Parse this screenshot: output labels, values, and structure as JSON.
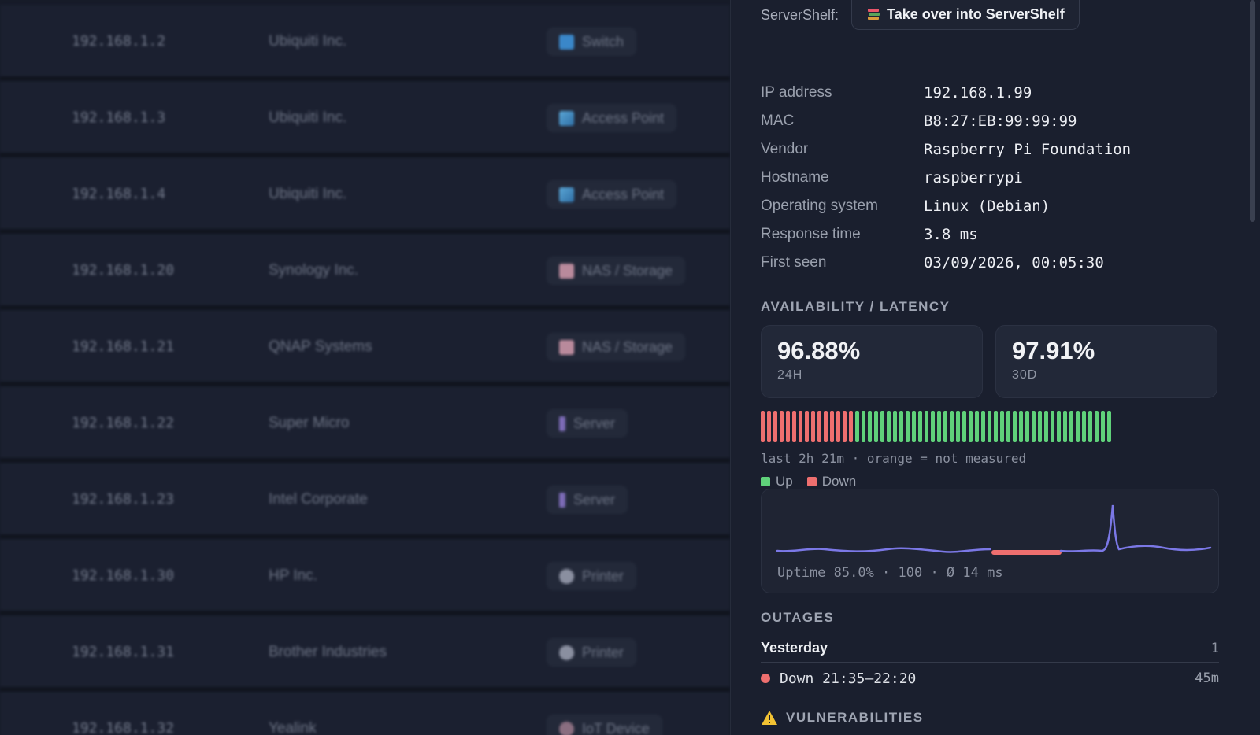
{
  "devices": [
    {
      "ip": "192.168.1.2",
      "vendor": "Ubiquiti Inc.",
      "type": "Switch",
      "icon": "switch-icon"
    },
    {
      "ip": "192.168.1.3",
      "vendor": "Ubiquiti Inc.",
      "type": "Access Point",
      "icon": "access-point-icon"
    },
    {
      "ip": "192.168.1.4",
      "vendor": "Ubiquiti Inc.",
      "type": "Access Point",
      "icon": "access-point-icon"
    },
    {
      "ip": "192.168.1.20",
      "vendor": "Synology Inc.",
      "type": "NAS / Storage",
      "icon": "nas-icon"
    },
    {
      "ip": "192.168.1.21",
      "vendor": "QNAP Systems",
      "type": "NAS / Storage",
      "icon": "nas-icon"
    },
    {
      "ip": "192.168.1.22",
      "vendor": "Super Micro",
      "type": "Server",
      "icon": "server-icon"
    },
    {
      "ip": "192.168.1.23",
      "vendor": "Intel Corporate",
      "type": "Server",
      "icon": "server-icon"
    },
    {
      "ip": "192.168.1.30",
      "vendor": "HP Inc.",
      "type": "Printer",
      "icon": "printer-icon"
    },
    {
      "ip": "192.168.1.31",
      "vendor": "Brother Industries",
      "type": "Printer",
      "icon": "printer-icon"
    },
    {
      "ip": "192.168.1.32",
      "vendor": "Yealink",
      "type": "IoT Device",
      "icon": "iot-device-icon"
    }
  ],
  "servershelf": {
    "label": "ServerShelf:",
    "button_label": "Take over into ServerShelf",
    "button_icon": "books-icon"
  },
  "info": [
    {
      "key": "IP address",
      "value": "192.168.1.99"
    },
    {
      "key": "MAC",
      "value": "B8:27:EB:99:99:99"
    },
    {
      "key": "Vendor",
      "value": "Raspberry Pi Foundation"
    },
    {
      "key": "Hostname",
      "value": "raspberrypi"
    },
    {
      "key": "Operating system",
      "value": "Linux (Debian)"
    },
    {
      "key": "Response time",
      "value": "3.8 ms"
    },
    {
      "key": "First seen",
      "value": "03/09/2026, 00:05:30"
    }
  ],
  "availability": {
    "title": "AVAILABILITY / LATENCY",
    "stats": [
      {
        "value": "96.88%",
        "label": "24H"
      },
      {
        "value": "97.91%",
        "label": "30D"
      }
    ],
    "status_bars": {
      "down_count": 15,
      "up_count": 41
    },
    "bars_caption": "last 2h 21m · orange = not measured",
    "legend": [
      {
        "label": "Up",
        "color": "#5fd17a"
      },
      {
        "label": "Down",
        "color": "#ee6f6f"
      }
    ],
    "latency_caption": "Uptime 85.0% · 100 · Ø 14 ms"
  },
  "outages": {
    "title": "OUTAGES",
    "groups": [
      {
        "day": "Yesterday",
        "count": "1",
        "items": [
          {
            "label": "Down 21:35–22:20",
            "duration": "45m"
          }
        ]
      }
    ]
  },
  "vulnerabilities": {
    "title": "VULNERABILITIES",
    "icon": "warning-icon"
  },
  "colors": {
    "up": "#5fd17a",
    "down": "#ee6f6f",
    "latency_line": "#7b78e6",
    "warning": "#f2c233"
  }
}
